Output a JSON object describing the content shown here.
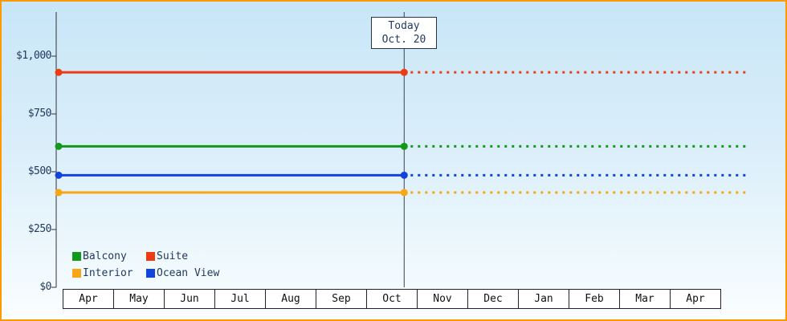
{
  "frame": {
    "border_color": "#ff9900",
    "background_top": "#c8e6f7",
    "background_bottom": "#fbfeff"
  },
  "chart_data": {
    "type": "line",
    "x_categories": [
      "Apr",
      "May",
      "Jun",
      "Jul",
      "Aug",
      "Sep",
      "Oct",
      "Nov",
      "Dec",
      "Jan",
      "Feb",
      "Mar",
      "Apr"
    ],
    "y_ticks": [
      {
        "label": "$1,000",
        "value": 1000
      },
      {
        "label": "$750",
        "value": 750
      },
      {
        "label": "$500",
        "value": 500
      },
      {
        "label": "$250",
        "value": 250
      },
      {
        "label": "$0",
        "value": 0
      }
    ],
    "ylim": [
      0,
      1190
    ],
    "grid": false,
    "legend_position": "bottom-left",
    "today": {
      "label": "Today",
      "date_label": "Oct. 20",
      "month_index": 6,
      "day": 20,
      "days_in_month": 31
    },
    "series": [
      {
        "name": "Suite",
        "color": "#ee3b14",
        "value": 930,
        "style_before_today": "solid",
        "style_after_today": "dotted"
      },
      {
        "name": "Balcony",
        "color": "#12991b",
        "value": 610,
        "style_before_today": "solid",
        "style_after_today": "dotted"
      },
      {
        "name": "Ocean View",
        "color": "#1143dd",
        "value": 485,
        "style_before_today": "solid",
        "style_after_today": "dotted"
      },
      {
        "name": "Interior",
        "color": "#f7a716",
        "value": 410,
        "style_before_today": "solid",
        "style_after_today": "dotted"
      }
    ],
    "legend": {
      "items": [
        {
          "label": "Balcony",
          "color": "#12991b"
        },
        {
          "label": "Suite",
          "color": "#ee3b14"
        },
        {
          "label": "Interior",
          "color": "#f7a716"
        },
        {
          "label": "Ocean View",
          "color": "#1143dd"
        }
      ]
    }
  }
}
